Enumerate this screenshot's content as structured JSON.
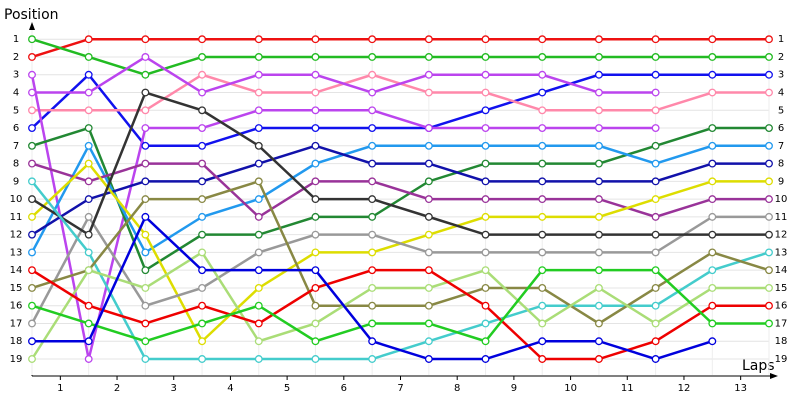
{
  "chart_data": {
    "type": "line",
    "y_label": "Position",
    "x_label": "Laps",
    "x": [
      0,
      1,
      2,
      3,
      4,
      5,
      6,
      7,
      8,
      9,
      10,
      11,
      12,
      13
    ],
    "xlim": [
      0,
      13
    ],
    "xticks": [
      {
        "value": 0.5,
        "label": "1"
      },
      {
        "value": 1.5,
        "label": "2"
      },
      {
        "value": 2.5,
        "label": "3"
      },
      {
        "value": 3.5,
        "label": "4"
      },
      {
        "value": 4.5,
        "label": "5"
      },
      {
        "value": 5.5,
        "label": "6"
      },
      {
        "value": 6.5,
        "label": "7"
      },
      {
        "value": 7.5,
        "label": "8"
      },
      {
        "value": 8.5,
        "label": "9"
      },
      {
        "value": 9.5,
        "label": "10"
      },
      {
        "value": 10.5,
        "label": "11"
      },
      {
        "value": 11.5,
        "label": "12"
      },
      {
        "value": 12.5,
        "label": "13"
      }
    ],
    "ylim": [
      19.9,
      0.2
    ],
    "yticks": [
      1,
      2,
      3,
      4,
      5,
      6,
      7,
      8,
      9,
      10,
      11,
      12,
      13,
      14,
      15,
      16,
      17,
      18,
      19
    ],
    "grid": true,
    "series": [
      {
        "color": "#ee1111",
        "values": [
          2,
          1,
          1,
          1,
          1,
          1,
          1,
          1,
          1,
          1,
          1,
          1,
          1,
          1
        ]
      },
      {
        "color": "#22bb22",
        "values": [
          1,
          2,
          3,
          2,
          2,
          2,
          2,
          2,
          2,
          2,
          2,
          2,
          2,
          2
        ]
      },
      {
        "color": "#1111ee",
        "values": [
          6,
          3,
          7,
          7,
          6,
          6,
          6,
          6,
          5,
          4,
          3,
          3,
          3,
          3
        ]
      },
      {
        "color": "#ff88aa",
        "values": [
          5,
          5,
          5,
          3,
          4,
          4,
          3,
          4,
          4,
          5,
          5,
          5,
          4,
          4
        ]
      },
      {
        "color": "#bb44ee",
        "values": [
          4,
          4,
          2,
          4,
          3,
          3,
          4,
          3,
          3,
          3,
          4,
          4,
          null,
          null
        ]
      },
      {
        "color": "#bb44ee",
        "values": [
          3,
          19,
          6,
          6,
          5,
          5,
          5,
          6,
          6,
          6,
          6,
          6,
          null,
          null
        ]
      },
      {
        "color": "#228833",
        "values": [
          7,
          6,
          14,
          12,
          12,
          11,
          11,
          9,
          8,
          8,
          8,
          7,
          6,
          6
        ]
      },
      {
        "color": "#2299ee",
        "values": [
          13,
          7,
          13,
          11,
          10,
          8,
          7,
          7,
          7,
          7,
          7,
          8,
          7,
          7
        ]
      },
      {
        "color": "#1111aa",
        "values": [
          12,
          10,
          9,
          9,
          8,
          7,
          8,
          8,
          9,
          9,
          9,
          9,
          8,
          8
        ]
      },
      {
        "color": "#993399",
        "values": [
          8,
          9,
          8,
          8,
          11,
          9,
          9,
          10,
          10,
          10,
          10,
          11,
          10,
          10
        ]
      },
      {
        "color": "#dddd00",
        "values": [
          11,
          8,
          12,
          18,
          15,
          13,
          13,
          12,
          11,
          11,
          11,
          10,
          9,
          9
        ]
      },
      {
        "color": "#999999",
        "values": [
          17,
          11,
          16,
          15,
          13,
          12,
          12,
          13,
          13,
          13,
          13,
          13,
          11,
          11
        ]
      },
      {
        "color": "#333333",
        "values": [
          10,
          12,
          4,
          5,
          7,
          10,
          10,
          11,
          12,
          12,
          12,
          12,
          12,
          12
        ]
      },
      {
        "color": "#44cccc",
        "values": [
          9,
          13,
          19,
          19,
          19,
          19,
          19,
          18,
          17,
          16,
          16,
          16,
          14,
          13
        ]
      },
      {
        "color": "#888844",
        "values": [
          15,
          14,
          10,
          10,
          9,
          16,
          16,
          16,
          15,
          15,
          17,
          15,
          13,
          14
        ]
      },
      {
        "color": "#aadd77",
        "values": [
          19,
          14,
          15,
          13,
          18,
          17,
          15,
          15,
          14,
          17,
          15,
          17,
          15,
          15
        ]
      },
      {
        "color": "#ee0000",
        "values": [
          14,
          16,
          17,
          16,
          17,
          15,
          14,
          14,
          16,
          19,
          19,
          18,
          16,
          16
        ]
      },
      {
        "color": "#22cc22",
        "values": [
          16,
          17,
          18,
          17,
          16,
          18,
          17,
          17,
          18,
          14,
          14,
          14,
          17,
          17
        ]
      },
      {
        "color": "#0000dd",
        "values": [
          18,
          18,
          11,
          14,
          14,
          14,
          18,
          19,
          19,
          18,
          18,
          19,
          18,
          null
        ]
      }
    ]
  }
}
